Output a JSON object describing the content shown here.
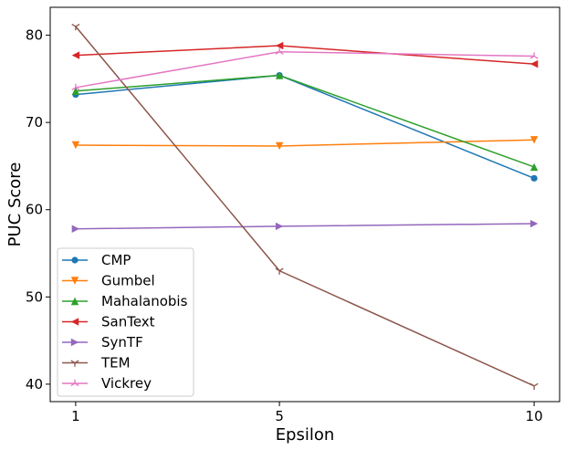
{
  "chart_data": {
    "type": "line",
    "xlabel": "Epsilon",
    "ylabel": "PUC Score",
    "x": [
      1,
      5,
      10
    ],
    "x_tick_labels": [
      "1",
      "5",
      "10"
    ],
    "y_ticks": [
      40,
      50,
      60,
      70,
      80
    ],
    "y_tick_labels": [
      "40",
      "50",
      "60",
      "70",
      "80"
    ],
    "xlim": [
      0.5,
      10.5
    ],
    "ylim": [
      38,
      83.2
    ],
    "grid": false,
    "legend_position": "lower-left",
    "series": [
      {
        "name": "CMP",
        "color": "#1f77b4",
        "marker": "circle",
        "values": [
          73.2,
          75.4,
          63.6
        ]
      },
      {
        "name": "Gumbel",
        "color": "#ff7f0e",
        "marker": "triangle-down",
        "values": [
          67.4,
          67.3,
          68.0
        ]
      },
      {
        "name": "Mahalanobis",
        "color": "#2ca02c",
        "marker": "triangle-up",
        "values": [
          73.6,
          75.4,
          64.9
        ]
      },
      {
        "name": "SanText",
        "color": "#d62728",
        "marker": "triangle-left",
        "values": [
          77.7,
          78.8,
          76.7
        ]
      },
      {
        "name": "SynTF",
        "color": "#9467bd",
        "marker": "triangle-right",
        "values": [
          57.8,
          58.1,
          58.4
        ]
      },
      {
        "name": "TEM",
        "color": "#8c564b",
        "marker": "tri-down",
        "values": [
          81.0,
          53.0,
          39.8
        ]
      },
      {
        "name": "Vickrey",
        "color": "#e377c2",
        "marker": "tri-up",
        "values": [
          74.0,
          78.1,
          77.6
        ]
      }
    ]
  }
}
